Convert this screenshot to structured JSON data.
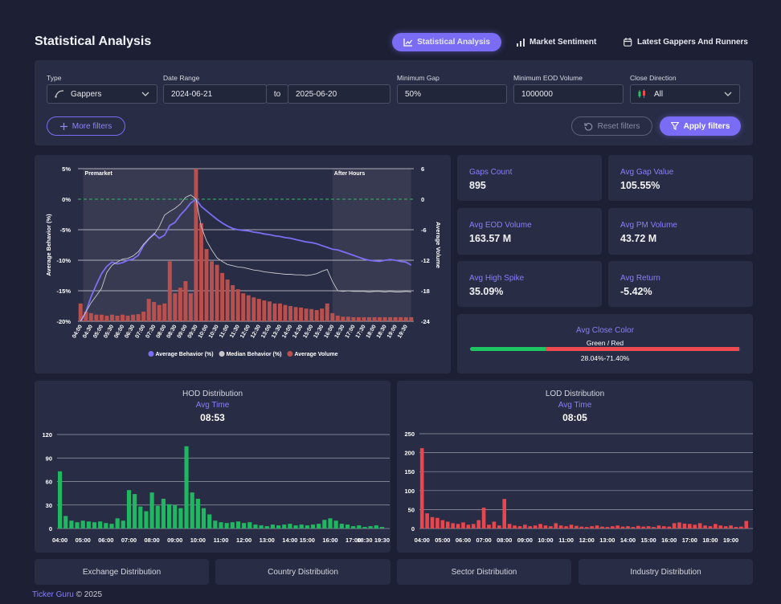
{
  "header": {
    "title": "Statistical Analysis",
    "tabs": [
      "Statistical Analysis",
      "Market Sentiment",
      "Latest Gappers And Runners"
    ]
  },
  "filters": {
    "type": {
      "label": "Type",
      "value": "Gappers"
    },
    "date_range": {
      "label": "Date Range",
      "from": "2024-06-21",
      "separator": "to",
      "to": "2025-06-20"
    },
    "min_gap": {
      "label": "Minimum Gap",
      "value": "50%"
    },
    "min_eod_volume": {
      "label": "Minimum EOD Volume",
      "value": "1000000"
    },
    "close_direction": {
      "label": "Close Direction",
      "value": "All"
    },
    "buttons": [
      "More filters",
      "Reset filters",
      "Apply filters"
    ]
  },
  "chart_data": [
    {
      "type": "combo",
      "annotations": [
        "Premarket",
        "After Hours"
      ],
      "y_label": "Average Behavior (%)",
      "y2_label": "Average Volume",
      "categories": [
        "04:00",
        null,
        "04:30",
        null,
        "05:00",
        null,
        "05:30",
        null,
        "06:00",
        null,
        "06:30",
        null,
        "07:00",
        null,
        "07:30",
        null,
        "08:00",
        null,
        "08:30",
        null,
        "09:00",
        null,
        "09:30",
        null,
        "10:00",
        null,
        "10:30",
        null,
        "11:00",
        null,
        "11:30",
        null,
        "12:00",
        null,
        "12:30",
        null,
        "13:00",
        null,
        "13:30",
        null,
        "14:00",
        null,
        "14:30",
        null,
        "15:00",
        null,
        "15:30",
        null,
        "16:00",
        null,
        "16:30",
        null,
        "17:00",
        null,
        "17:30",
        null,
        "18:00",
        null,
        "18:30",
        null,
        "19:00",
        null,
        "19:30",
        null
      ],
      "ylim": [
        -20,
        5
      ],
      "yticks": [
        {
          "value": -20,
          "label": "-20%"
        },
        {
          "value": -15,
          "label": "-15%"
        },
        {
          "value": -10,
          "label": "-10%"
        },
        {
          "value": -5,
          "label": "-5%"
        },
        {
          "value": 0,
          "label": "0%"
        },
        {
          "value": 5,
          "label": "5%"
        }
      ],
      "y2lim": [
        -24,
        6
      ],
      "y2ticks": [
        -24,
        -18,
        -12,
        -6,
        0,
        6
      ],
      "grid": true,
      "series": [
        {
          "name": "Average Behavior (%)",
          "type": "line",
          "axis": "y",
          "color": "#7b6ef2",
          "values": [
            -20,
            -18.5,
            -16,
            -14,
            -12.2,
            -11,
            -10.3,
            -10.6,
            -10.4,
            -10,
            -9.8,
            -9.2,
            -7.6,
            -6.5,
            -5.6,
            -6.4,
            -5.9,
            -4.3,
            -3.8,
            -2.6,
            -1.7,
            -0.6,
            0,
            -1.2,
            -1.9,
            -2.6,
            -3.3,
            -3.9,
            -4.4,
            -4.8,
            -5,
            -5.1,
            -5.2,
            -5.4,
            -5.5,
            -5.7,
            -5.8,
            -6,
            -6.1,
            -6.3,
            -6.4,
            -6.6,
            -6.8,
            -7,
            -7.1,
            -7.3,
            -7.6,
            -7.9,
            -8.2,
            -8.3,
            -8.6,
            -8.9,
            -9.2,
            -9.5,
            -9.8,
            -10,
            -10.1,
            -10.2,
            -10,
            -9.9,
            -10,
            -10.2,
            -10.3,
            -10.8
          ]
        },
        {
          "name": "Median Behavior (%)",
          "type": "line",
          "axis": "y",
          "color": "#c8c8cc",
          "values": [
            -20,
            -18.5,
            -17,
            -15.8,
            -14.6,
            -12,
            -10.8,
            -10.3,
            -9.8,
            -9.7,
            -9.3,
            -8.6,
            -7.4,
            -6.5,
            -5.8,
            -4.5,
            -2.6,
            -2,
            -1.5,
            -0.8,
            0.3,
            0.7,
            0,
            -4.5,
            -6.8,
            -8.3,
            -9.6,
            -10.2,
            -10.7,
            -10.9,
            -11.1,
            -11.2,
            -11.4,
            -11.6,
            -11.7,
            -11.9,
            -12,
            -12.1,
            -12.2,
            -12.3,
            -12.3,
            -12.4,
            -12.4,
            -12.5,
            -12.4,
            -12.2,
            -11.8,
            -11.5,
            -13.5,
            -15,
            -15.1,
            -15,
            -15.1,
            -15.1,
            -15.1,
            -15.2,
            -15.1,
            -15.1,
            -15.2,
            -15.1,
            -15.2,
            -15.2,
            -15.1,
            -15.2
          ]
        },
        {
          "name": "Average Volume",
          "type": "bar",
          "axis": "y2",
          "color": "#b9504e",
          "values": [
            -20.5,
            -22.1,
            -22.4,
            -22.7,
            -22.7,
            -22.9,
            -22.7,
            -22.9,
            -22.7,
            -22.9,
            -22.7,
            -22.6,
            -22.1,
            -19.6,
            -20.2,
            -20.8,
            -20.5,
            -12.2,
            -18.5,
            -17.4,
            -16.1,
            -18.5,
            6,
            -4.7,
            -9.8,
            -12.2,
            -12.9,
            -14.5,
            -15.8,
            -16.9,
            -17.7,
            -18.5,
            -18.9,
            -19.3,
            -19.6,
            -19.9,
            -20.1,
            -20.5,
            -20.5,
            -20.8,
            -21,
            -21.2,
            -21.3,
            -21.5,
            -21.6,
            -21.8,
            -21.5,
            -20.5,
            -22.4,
            -22.9,
            -23.1,
            -23.1,
            -23.2,
            -23.2,
            -23.2,
            -23.2,
            -23.2,
            -23.2,
            -23.2,
            -23.2,
            -23.2,
            -23.2,
            -23.2,
            -23.2
          ]
        }
      ]
    },
    {
      "type": "bar",
      "title": "HOD Distribution",
      "subtitle": "Avg Time",
      "avg_time": "08:53",
      "color": "#1fb861",
      "categories": [
        "04:00",
        null,
        null,
        null,
        "05:00",
        null,
        null,
        null,
        "06:00",
        null,
        null,
        null,
        "07:00",
        null,
        null,
        null,
        "08:00",
        null,
        null,
        null,
        "09:00",
        null,
        null,
        null,
        "10:00",
        null,
        null,
        null,
        "11:00",
        null,
        null,
        null,
        "12:00",
        null,
        null,
        null,
        "13:00",
        null,
        null,
        null,
        "14:00",
        null,
        null,
        "15:00",
        null,
        null,
        null,
        "16:00",
        null,
        null,
        null,
        "17:00",
        null,
        "18:30",
        null,
        null,
        "19:30"
      ],
      "values": [
        73,
        16,
        10,
        8,
        10,
        9,
        8,
        9,
        7,
        6,
        13,
        10,
        49,
        44,
        28,
        22,
        46,
        29,
        38,
        31,
        30,
        26,
        105,
        46,
        38,
        26,
        18,
        10,
        8,
        7,
        8,
        9,
        7,
        8,
        5,
        4,
        3,
        5,
        4,
        5,
        6,
        4,
        5,
        4,
        5,
        6,
        11,
        13,
        10,
        6,
        5,
        3,
        4,
        2,
        3,
        4,
        2
      ],
      "ylim": [
        0,
        120
      ],
      "yticks": [
        0,
        30,
        60,
        90,
        120
      ],
      "grid": true
    },
    {
      "type": "bar",
      "title": "LOD Distribution",
      "subtitle": "Avg Time",
      "avg_time": "08:05",
      "color": "#e8464c",
      "categories": [
        "04:00",
        null,
        null,
        null,
        "05:00",
        null,
        null,
        null,
        "06:00",
        null,
        null,
        null,
        "07:00",
        null,
        null,
        null,
        "08:00",
        null,
        null,
        null,
        "09:00",
        null,
        null,
        null,
        "10:00",
        null,
        null,
        null,
        "11:00",
        null,
        null,
        null,
        "12:00",
        null,
        null,
        null,
        "13:00",
        null,
        null,
        null,
        "14:00",
        null,
        null,
        null,
        "15:00",
        null,
        null,
        null,
        "16:00",
        null,
        null,
        null,
        "17:00",
        null,
        null,
        null,
        "18:00",
        null,
        null,
        null,
        "19:00",
        null,
        null,
        null
      ],
      "values": [
        212,
        40,
        30,
        28,
        22,
        18,
        14,
        12,
        16,
        10,
        12,
        22,
        55,
        10,
        18,
        8,
        78,
        12,
        8,
        6,
        10,
        6,
        8,
        12,
        8,
        6,
        14,
        8,
        6,
        10,
        7,
        5,
        4,
        6,
        8,
        5,
        4,
        6,
        8,
        5,
        6,
        4,
        7,
        5,
        6,
        4,
        8,
        6,
        5,
        14,
        16,
        13,
        12,
        10,
        14,
        8,
        6,
        12,
        8,
        6,
        8,
        4,
        5,
        20
      ],
      "ylim": [
        0,
        250
      ],
      "yticks": [
        0,
        50,
        100,
        150,
        200,
        250
      ],
      "grid": true
    }
  ],
  "stats": [
    {
      "label": "Gaps Count",
      "value": "895"
    },
    {
      "label": "Avg Gap Value",
      "value": "105.55%"
    },
    {
      "label": "Avg EOD Volume",
      "value": "163.57 M"
    },
    {
      "label": "Avg PM Volume",
      "value": "43.72 M"
    },
    {
      "label": "Avg High Spike",
      "value": "35.09%"
    },
    {
      "label": "Avg Return",
      "value": "-5.42%"
    }
  ],
  "close_color": {
    "title": "Avg Close Color",
    "subtitle": "Green / Red",
    "label": "28.04%-71.40%",
    "green": 28.04,
    "red": 71.4,
    "green_color": "#1fc463",
    "red_color": "#ef4a4f"
  },
  "sections": [
    "Exchange Distribution",
    "Country Distribution",
    "Sector Distribution",
    "Industry Distribution"
  ],
  "footer": {
    "brand": "Ticker Guru",
    "copyright": "© 2025"
  }
}
